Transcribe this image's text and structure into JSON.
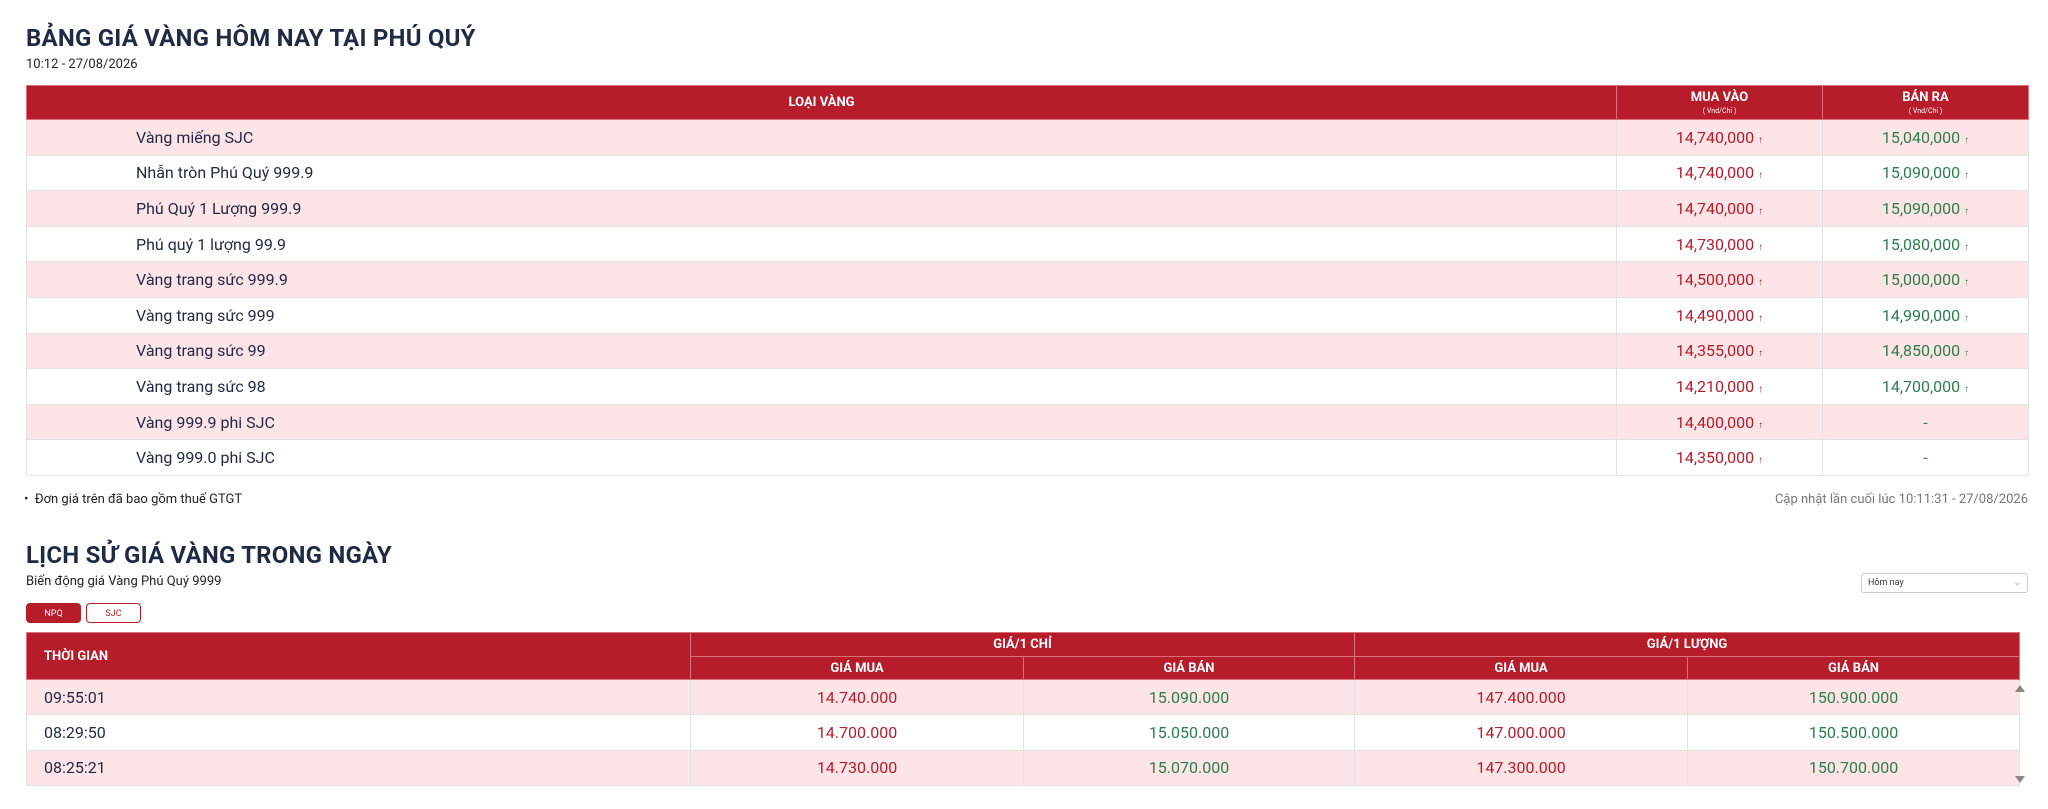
{
  "header": {
    "title": "BẢNG GIÁ VÀNG HÔM NAY TẠI PHÚ QUÝ",
    "time": "10:12 - 27/08/2026"
  },
  "table": {
    "columns": [
      {
        "label": "LOẠI VÀNG"
      },
      {
        "label": "MUA VÀO",
        "unit": "( Vnd/Chỉ )"
      },
      {
        "label": "BÁN RA",
        "unit": "( Vnd/Chỉ )"
      }
    ],
    "rows": [
      {
        "name": "Vàng miếng SJC",
        "buy": "14,740,000",
        "sell": "15,040,000"
      },
      {
        "name": "Nhẫn tròn Phú Quý 999.9",
        "buy": "14,740,000",
        "sell": "15,090,000"
      },
      {
        "name": "Phú Quý 1 Lượng 999.9",
        "buy": "14,740,000",
        "sell": "15,090,000"
      },
      {
        "name": "Phú quý 1 lượng 99.9",
        "buy": "14,730,000",
        "sell": "15,080,000"
      },
      {
        "name": "Vàng trang sức 999.9",
        "buy": "14,500,000",
        "sell": "15,000,000"
      },
      {
        "name": "Vàng trang sức 999",
        "buy": "14,490,000",
        "sell": "14,990,000"
      },
      {
        "name": "Vàng trang sức 99",
        "buy": "14,355,000",
        "sell": "14,850,000"
      },
      {
        "name": "Vàng trang sức 98",
        "buy": "14,210,000",
        "sell": "14,700,000"
      },
      {
        "name": "Vàng 999.9 phi SJC",
        "buy": "14,400,000",
        "sell": "-"
      },
      {
        "name": "Vàng 999.0 phi SJC",
        "buy": "14,350,000",
        "sell": "-"
      }
    ]
  },
  "note": "Đơn giá trên đã bao gồm thuế GTGT",
  "updated": "Cập nhật lần cuối lúc 10:11:31 - 27/08/2026",
  "history": {
    "title": "LỊCH SỬ GIÁ VÀNG TRONG NGÀY",
    "subtitle": "Biến động giá Vàng Phú Quý 9999",
    "period": "Hôm nay",
    "tabs": [
      "NPQ",
      "SJC"
    ],
    "columns": {
      "time": "THỜI GIAN",
      "groups": [
        "GIÁ/1 CHỈ",
        "GIÁ/1 LƯỢNG"
      ],
      "sub": [
        "GIÁ MUA",
        "GIÁ BÁN",
        "GIÁ MUA",
        "GIÁ BÁN"
      ]
    },
    "rows": [
      [
        "09:55:01",
        "14.740.000",
        "15.090.000",
        "147.400.000",
        "150.900.000"
      ],
      [
        "08:29:50",
        "14.700.000",
        "15.050.000",
        "147.000.000",
        "150.500.000"
      ],
      [
        "08:25:21",
        "14.730.000",
        "15.070.000",
        "147.300.000",
        "150.700.000"
      ]
    ]
  }
}
